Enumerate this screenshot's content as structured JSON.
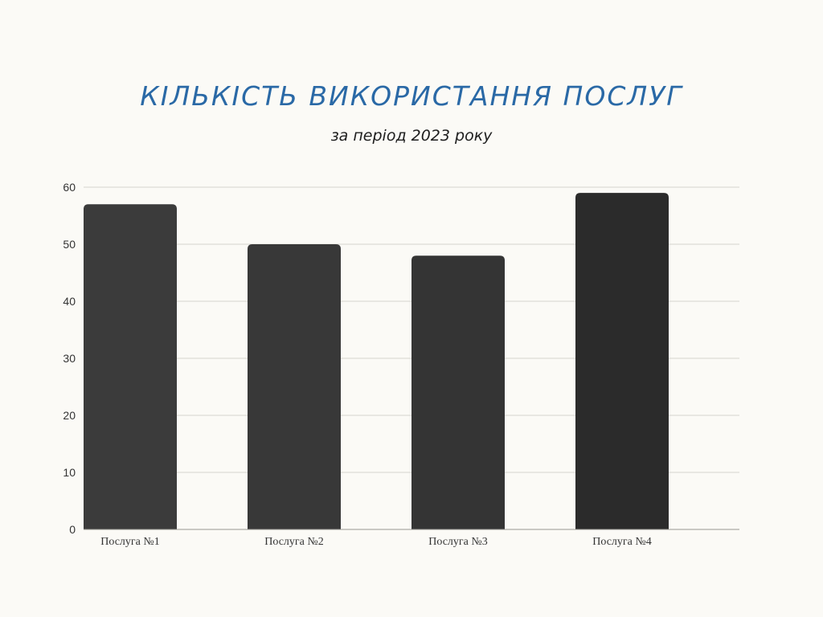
{
  "chart_data": {
    "type": "bar",
    "title": "КІЛЬКІСТЬ ВИКОРИСТАННЯ ПОСЛУГ",
    "subtitle": "за період 2023 року",
    "categories": [
      "Послуга №1",
      "Послуга №2",
      "Послуга №3",
      "Послуга №4"
    ],
    "values": [
      57,
      50,
      48,
      59
    ],
    "ylim": [
      0,
      60
    ],
    "yticks": [
      0,
      10,
      20,
      30,
      40,
      50,
      60
    ],
    "grid": true,
    "legend": "none",
    "bar_colors": [
      "#3b3b3b",
      "#383838",
      "#343434",
      "#2b2b2b"
    ],
    "title_color": "#2a69a6",
    "grid_color": "#d6d4cf",
    "background": "#fbfaf6"
  }
}
